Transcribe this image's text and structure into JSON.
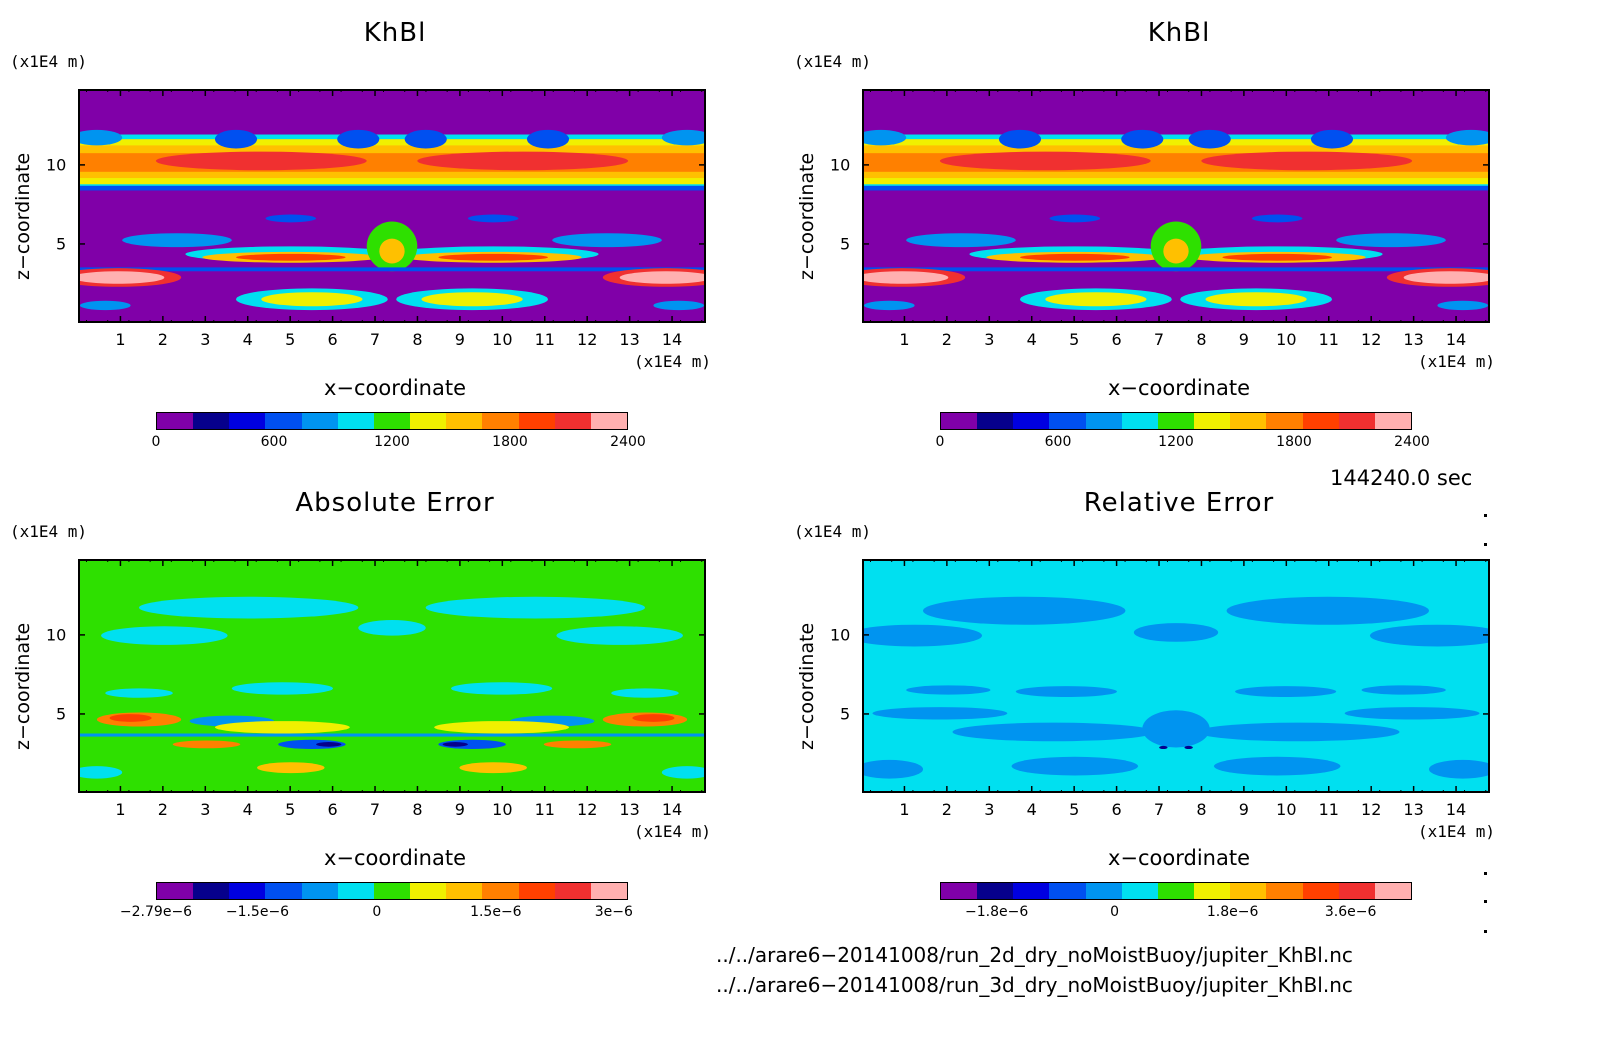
{
  "panels": [
    {
      "title": "KhBl",
      "zunit": "(x1E4 m)",
      "xunit": "(x1E4 m)",
      "ylabel": "z−coordinate",
      "xlabel": "x−coordinate",
      "colorbar_labels": [
        "0",
        "600",
        "1200",
        "1800",
        "2400"
      ],
      "colorbar_label_fracs": [
        0.0,
        0.25,
        0.5,
        0.75,
        1.0
      ],
      "palette": [
        "#8000a8",
        "#06008c",
        "#0000e0",
        "#0050f0",
        "#0094f0",
        "#00e0f0",
        "#2ee000",
        "#f0f000",
        "#ffc000",
        "#ff8000",
        "#ff4000",
        "#f03030",
        "#ffb0b0"
      ],
      "background": "#8000a8"
    },
    {
      "title": "KhBl",
      "zunit": "(x1E4 m)",
      "xunit": "(x1E4 m)",
      "ylabel": "z−coordinate",
      "xlabel": "x−coordinate",
      "colorbar_labels": [
        "0",
        "600",
        "1200",
        "1800",
        "2400"
      ],
      "colorbar_label_fracs": [
        0.0,
        0.25,
        0.5,
        0.75,
        1.0
      ],
      "palette": [
        "#8000a8",
        "#06008c",
        "#0000e0",
        "#0050f0",
        "#0094f0",
        "#00e0f0",
        "#2ee000",
        "#f0f000",
        "#ffc000",
        "#ff8000",
        "#ff4000",
        "#f03030",
        "#ffb0b0"
      ],
      "background": "#8000a8"
    },
    {
      "title": "Absolute Error",
      "zunit": "(x1E4 m)",
      "xunit": "(x1E4 m)",
      "ylabel": "z−coordinate",
      "xlabel": "x−coordinate",
      "colorbar_labels": [
        "−2.79e−6",
        "−1.5e−6",
        "0",
        "1.5e−6",
        "3e−6"
      ],
      "colorbar_label_fracs": [
        0.0,
        0.215,
        0.468,
        0.72,
        0.97
      ],
      "palette": [
        "#8000a8",
        "#06008c",
        "#0000e0",
        "#0050f0",
        "#0094f0",
        "#00e0f0",
        "#2ee000",
        "#f0f000",
        "#ffc000",
        "#ff8000",
        "#ff4000",
        "#f03030",
        "#ffb0b0"
      ],
      "background": "#2ee000"
    },
    {
      "title": "Relative Error",
      "zunit": "(x1E4 m)",
      "xunit": "(x1E4 m)",
      "ylabel": "z−coordinate",
      "xlabel": "x−coordinate",
      "colorbar_labels": [
        "−1.8e−6",
        "0",
        "1.8e−6",
        "3.6e−6"
      ],
      "colorbar_label_fracs": [
        0.12,
        0.37,
        0.62,
        0.87
      ],
      "palette": [
        "#8000a8",
        "#06008c",
        "#0000e0",
        "#0050f0",
        "#0094f0",
        "#00e0f0",
        "#2ee000",
        "#f0f000",
        "#ffc000",
        "#ff8000",
        "#ff4000",
        "#f03030",
        "#ffb0b0"
      ],
      "background": "#00e0f0"
    }
  ],
  "time_label": "144240.0 sec",
  "file_paths": [
    "../../arare6−20141008/run_2d_dry_noMoistBuoy/jupiter_KhBl.nc",
    "../../arare6−20141008/run_3d_dry_noMoistBuoy/jupiter_KhBl.nc"
  ],
  "chart_data": [
    {
      "type": "heatmap",
      "title": "KhBl",
      "xlabel": "x−coordinate",
      "ylabel": "z−coordinate",
      "x_unit": "(x1E4 m)",
      "z_unit": "(x1E4 m)",
      "xlim": [
        0,
        14.8
      ],
      "ylim": [
        0,
        14.8
      ],
      "x_ticks": [
        1,
        2,
        3,
        4,
        5,
        6,
        7,
        8,
        9,
        10,
        11,
        12,
        13,
        14
      ],
      "y_ticks": [
        5,
        10
      ],
      "colorbar": {
        "min": 0,
        "max": 2400,
        "labels": [
          0,
          600,
          1200,
          1800,
          2400
        ],
        "levels": 13
      }
    },
    {
      "type": "heatmap",
      "title": "KhBl",
      "xlabel": "x−coordinate",
      "ylabel": "z−coordinate",
      "x_unit": "(x1E4 m)",
      "z_unit": "(x1E4 m)",
      "xlim": [
        0,
        14.8
      ],
      "ylim": [
        0,
        14.8
      ],
      "x_ticks": [
        1,
        2,
        3,
        4,
        5,
        6,
        7,
        8,
        9,
        10,
        11,
        12,
        13,
        14
      ],
      "y_ticks": [
        5,
        10
      ],
      "colorbar": {
        "min": 0,
        "max": 2400,
        "labels": [
          0,
          600,
          1200,
          1800,
          2400
        ],
        "levels": 13
      }
    },
    {
      "type": "heatmap",
      "title": "Absolute Error",
      "xlabel": "x−coordinate",
      "ylabel": "z−coordinate",
      "x_unit": "(x1E4 m)",
      "z_unit": "(x1E4 m)",
      "xlim": [
        0,
        14.8
      ],
      "ylim": [
        0,
        14.8
      ],
      "x_ticks": [
        1,
        2,
        3,
        4,
        5,
        6,
        7,
        8,
        9,
        10,
        11,
        12,
        13,
        14
      ],
      "y_ticks": [
        5,
        10
      ],
      "colorbar": {
        "min": -2.79e-06,
        "max": 3.2e-06,
        "labels": [
          -2.79e-06,
          -1.5e-06,
          0,
          1.5e-06,
          3e-06
        ],
        "levels": 13
      }
    },
    {
      "type": "heatmap",
      "title": "Relative Error",
      "xlabel": "x−coordinate",
      "ylabel": "z−coordinate",
      "x_unit": "(x1E4 m)",
      "z_unit": "(x1E4 m)",
      "xlim": [
        0,
        14.8
      ],
      "ylim": [
        0,
        14.8
      ],
      "x_ticks": [
        1,
        2,
        3,
        4,
        5,
        6,
        7,
        8,
        9,
        10,
        11,
        12,
        13,
        14
      ],
      "y_ticks": [
        5,
        10
      ],
      "colorbar": {
        "labels": [
          -1.8e-06,
          0,
          1.8e-06,
          3.6e-06
        ],
        "levels": 13
      }
    }
  ]
}
